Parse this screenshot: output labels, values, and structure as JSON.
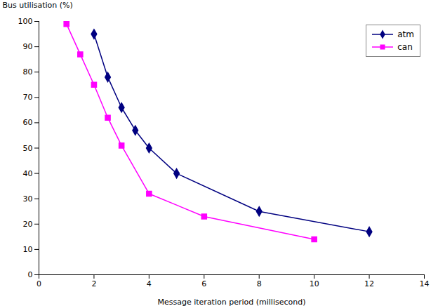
{
  "chart_data": {
    "type": "line",
    "xlabel": "Message iteration period (millisecond)",
    "ylabel": "Bus utilisation (%)",
    "xlim": [
      0,
      14
    ],
    "ylim": [
      0,
      100
    ],
    "xticks": [
      0,
      2,
      4,
      6,
      8,
      10,
      12,
      14
    ],
    "yticks": [
      0,
      10,
      20,
      30,
      40,
      50,
      60,
      70,
      80,
      90,
      100
    ],
    "grid": false,
    "legend": "upper right",
    "series": [
      {
        "name": "atm",
        "color": "#000080",
        "marker": "diamond",
        "x": [
          2,
          2.5,
          3,
          3.5,
          4,
          5,
          8,
          12
        ],
        "values": [
          95,
          78,
          66,
          57,
          50,
          40,
          25,
          17
        ]
      },
      {
        "name": "can",
        "color": "#FF00FF",
        "marker": "square",
        "x": [
          1,
          1.5,
          2,
          2.5,
          3,
          4,
          6,
          10
        ],
        "values": [
          99,
          87,
          75,
          62,
          51,
          32,
          23,
          14
        ]
      }
    ]
  }
}
